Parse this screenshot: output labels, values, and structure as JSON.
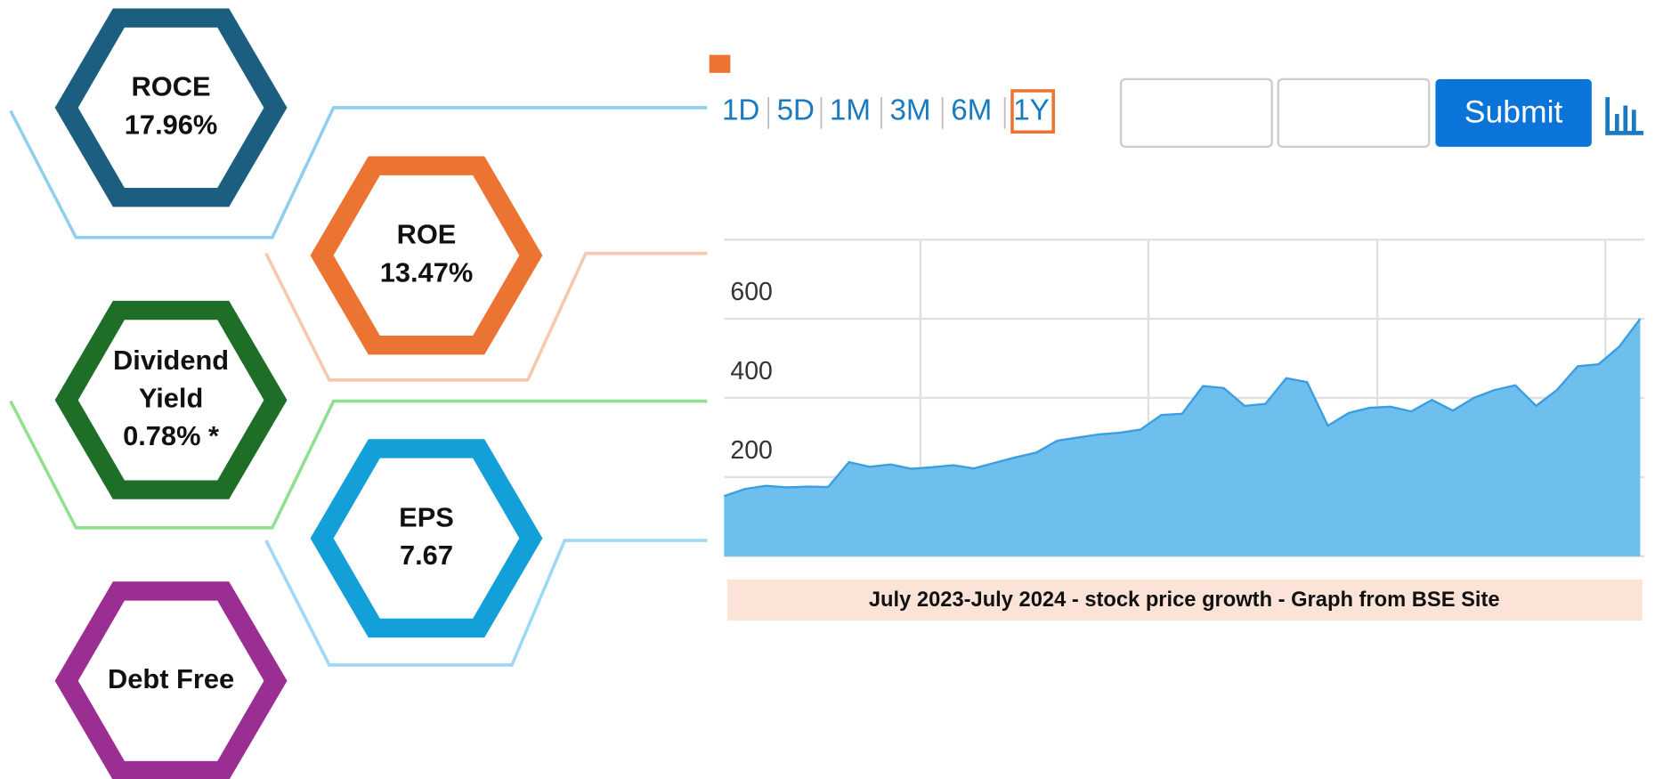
{
  "metrics": [
    {
      "lines": [
        "ROCE",
        "17.96%"
      ]
    },
    {
      "lines": [
        "ROE",
        "13.47%"
      ]
    },
    {
      "lines": [
        "Dividend",
        "Yield",
        "0.78% *"
      ]
    },
    {
      "lines": [
        "EPS",
        "7.67"
      ]
    },
    {
      "lines": [
        "Debt Free"
      ]
    }
  ],
  "controls": {
    "ranges": [
      "1D",
      "5D",
      "1M",
      "3M",
      "6M",
      "1Y"
    ],
    "submit": "Submit"
  },
  "chart_data": {
    "type": "area",
    "title": "July 2023-July 2024 - stock price growth - Graph from BSE Site",
    "color": "#6fbfee",
    "line_color": "#3a9ee0",
    "values": [
      152,
      170,
      178,
      174,
      176,
      175,
      238,
      226,
      232,
      221,
      225,
      230,
      222,
      236,
      250,
      262,
      292,
      300,
      308,
      312,
      320,
      357,
      360,
      430,
      425,
      380,
      385,
      450,
      440,
      330,
      362,
      375,
      378,
      366,
      395,
      368,
      400,
      420,
      432,
      380,
      420,
      480,
      485,
      530,
      600
    ],
    "ylim": [
      0,
      800
    ],
    "yticks": [
      0,
      200,
      400,
      600
    ],
    "grid": true
  }
}
